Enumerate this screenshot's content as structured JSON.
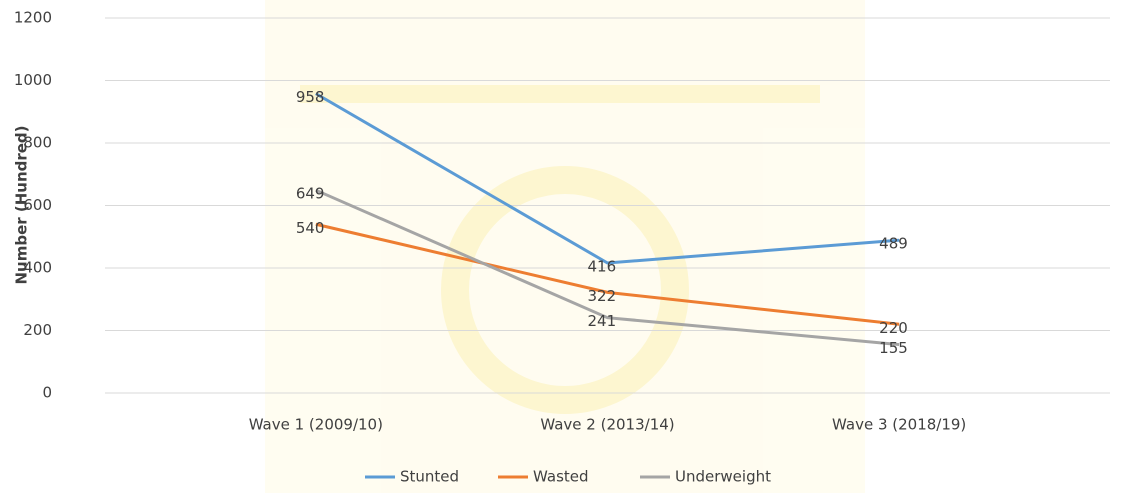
{
  "chart_data": {
    "type": "line",
    "y_label": "Number (Hundred)",
    "categories": [
      "Wave 1 (2009/10)",
      "Wave 2 (2013/14)",
      "Wave 3 (2018/19)"
    ],
    "series": [
      {
        "name": "Stunted",
        "color": "#5b9bd5",
        "values": [
          958,
          416,
          489
        ]
      },
      {
        "name": "Wasted",
        "color": "#ed7d31",
        "values": [
          540,
          322,
          220
        ]
      },
      {
        "name": "Underweight",
        "color": "#a5a5a5",
        "values": [
          649,
          241,
          155
        ]
      }
    ],
    "ylim": [
      0,
      1200
    ],
    "yticks": [
      0,
      200,
      400,
      600,
      800,
      1000,
      1200
    ],
    "grid": true,
    "legend": "bottom"
  }
}
